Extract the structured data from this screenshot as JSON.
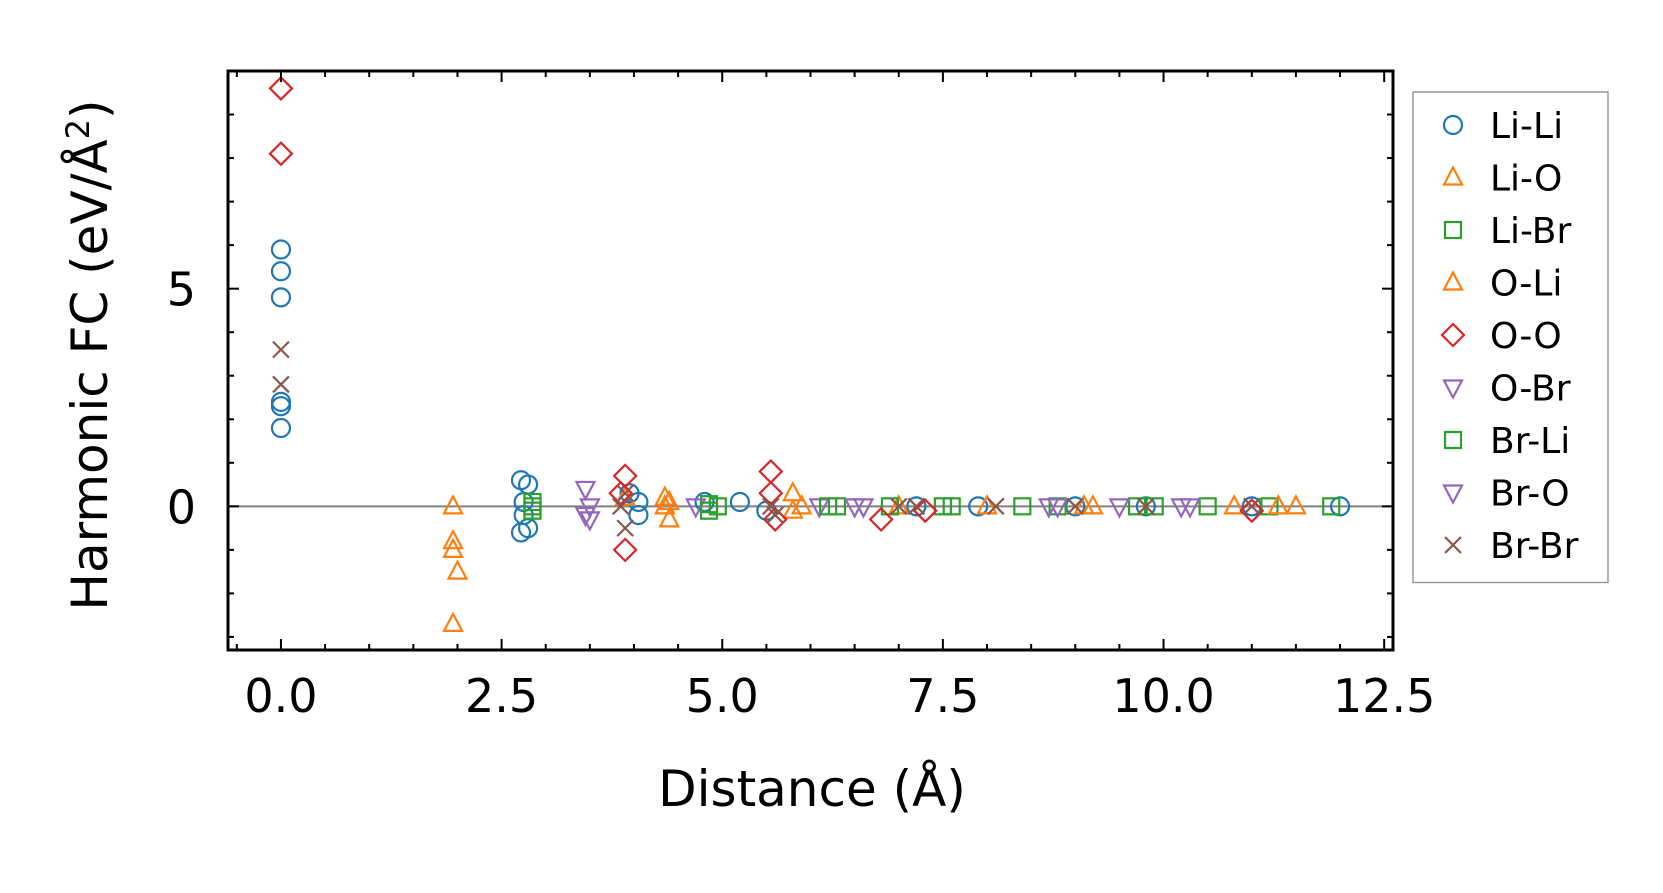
{
  "chart_data": {
    "type": "scatter",
    "xlabel": "Distance (Å)",
    "ylabel_main": "Harmonic FC (eV/Å",
    "ylabel_sup": "2",
    "ylabel_close": ")",
    "xlim": [
      -0.6,
      12.6
    ],
    "ylim": [
      -3.3,
      10.0
    ],
    "xticks": [
      0.0,
      2.5,
      5.0,
      7.5,
      10.0,
      12.5
    ],
    "xtick_labels": [
      "0.0",
      "2.5",
      "5.0",
      "7.5",
      "10.0",
      "12.5"
    ],
    "yticks": [
      0,
      5
    ],
    "ytick_labels": [
      "0",
      "5"
    ],
    "reference_line_y": 0,
    "legend_position": "outside-right",
    "series": [
      {
        "name": "Li-Li",
        "marker": "circle",
        "color": "#1f77b4",
        "points": [
          [
            0,
            5.9
          ],
          [
            0,
            5.4
          ],
          [
            0,
            4.8
          ],
          [
            0,
            2.4
          ],
          [
            0,
            2.3
          ],
          [
            0,
            1.8
          ],
          [
            2.72,
            0.6
          ],
          [
            2.72,
            -0.6
          ],
          [
            2.8,
            0.5
          ],
          [
            2.8,
            -0.5
          ],
          [
            2.75,
            0.1
          ],
          [
            2.75,
            -0.2
          ],
          [
            4.05,
            0.1
          ],
          [
            4.05,
            -0.2
          ],
          [
            3.95,
            0.3
          ],
          [
            4.8,
            0.1
          ],
          [
            5.2,
            0.1
          ],
          [
            5.5,
            -0.1
          ],
          [
            7.2,
            0.0
          ],
          [
            7.9,
            0.0
          ],
          [
            9.0,
            0.0
          ],
          [
            9.8,
            0.0
          ],
          [
            11.0,
            0.0
          ],
          [
            12.0,
            0.0
          ]
        ]
      },
      {
        "name": "Li-O",
        "marker": "triangle-up",
        "color": "#ff7f0e",
        "points": [
          [
            1.95,
            -0.8
          ],
          [
            1.95,
            -1.0
          ],
          [
            2.0,
            -1.5
          ],
          [
            1.95,
            -2.7
          ],
          [
            3.9,
            0.2
          ],
          [
            4.35,
            0.2
          ],
          [
            4.4,
            -0.3
          ],
          [
            4.35,
            0.0
          ],
          [
            5.8,
            0.3
          ],
          [
            5.9,
            0.0
          ],
          [
            7.0,
            0.0
          ],
          [
            8.0,
            0.0
          ],
          [
            9.2,
            0.0
          ],
          [
            10.8,
            0.0
          ],
          [
            11.5,
            0.0
          ]
        ]
      },
      {
        "name": "Li-Br",
        "marker": "square",
        "color": "#2ca02c",
        "points": [
          [
            2.85,
            0.1
          ],
          [
            2.85,
            -0.1
          ],
          [
            4.85,
            0.05
          ],
          [
            4.95,
            0.0
          ],
          [
            6.3,
            0.0
          ],
          [
            6.9,
            0.0
          ],
          [
            7.5,
            0.0
          ],
          [
            8.4,
            0.0
          ],
          [
            8.8,
            0.0
          ],
          [
            9.7,
            0.0
          ],
          [
            10.5,
            0.0
          ],
          [
            11.2,
            0.0
          ],
          [
            11.9,
            0.0
          ]
        ]
      },
      {
        "name": "O-Li",
        "marker": "triangle-up",
        "color": "#ff7f0e",
        "points": [
          [
            1.95,
            0.0
          ],
          [
            4.4,
            0.1
          ],
          [
            5.8,
            -0.1
          ],
          [
            9.1,
            0.0
          ],
          [
            11.3,
            0.0
          ]
        ]
      },
      {
        "name": "O-O",
        "marker": "diamond",
        "color": "#d62728",
        "points": [
          [
            0,
            9.6
          ],
          [
            0,
            8.1
          ],
          [
            3.9,
            0.7
          ],
          [
            3.9,
            -1.0
          ],
          [
            3.85,
            0.3
          ],
          [
            5.55,
            0.8
          ],
          [
            5.55,
            0.3
          ],
          [
            5.6,
            -0.3
          ],
          [
            6.8,
            -0.3
          ],
          [
            7.3,
            -0.1
          ],
          [
            11.0,
            -0.1
          ]
        ]
      },
      {
        "name": "O-Br",
        "marker": "triangle-down",
        "color": "#9467bd",
        "points": [
          [
            3.45,
            0.4
          ],
          [
            3.5,
            0.0
          ],
          [
            3.45,
            -0.2
          ],
          [
            4.7,
            0.0
          ],
          [
            6.1,
            0.0
          ],
          [
            6.5,
            0.0
          ],
          [
            8.7,
            0.0
          ],
          [
            9.5,
            0.0
          ],
          [
            10.2,
            0.0
          ]
        ]
      },
      {
        "name": "Br-Li",
        "marker": "square",
        "color": "#2ca02c",
        "points": [
          [
            2.85,
            0.0
          ],
          [
            4.85,
            -0.1
          ],
          [
            6.2,
            0.0
          ],
          [
            7.6,
            0.0
          ],
          [
            9.9,
            0.0
          ]
        ]
      },
      {
        "name": "Br-O",
        "marker": "triangle-down",
        "color": "#9467bd",
        "points": [
          [
            3.5,
            -0.3
          ],
          [
            6.6,
            0.0
          ],
          [
            8.8,
            0.0
          ],
          [
            10.3,
            0.0
          ]
        ]
      },
      {
        "name": "Br-Br",
        "marker": "x",
        "color": "#8c564b",
        "points": [
          [
            0,
            3.6
          ],
          [
            0,
            2.8
          ],
          [
            3.9,
            0.3
          ],
          [
            3.9,
            -0.5
          ],
          [
            3.85,
            0.0
          ],
          [
            5.55,
            0.0
          ],
          [
            5.6,
            -0.2
          ],
          [
            7.0,
            0.0
          ],
          [
            7.2,
            0.0
          ],
          [
            8.1,
            0.0
          ],
          [
            9.0,
            0.0
          ],
          [
            9.8,
            0.0
          ],
          [
            11.0,
            0.0
          ]
        ]
      }
    ]
  }
}
